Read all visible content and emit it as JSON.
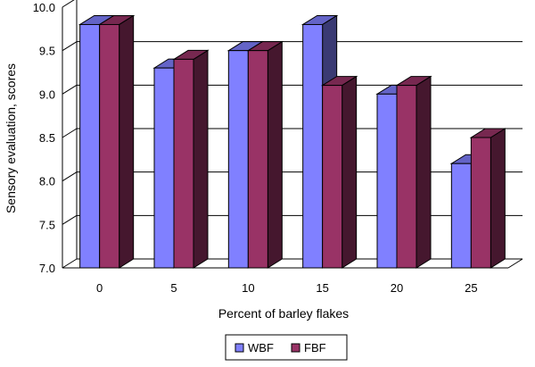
{
  "chart_data": {
    "type": "bar",
    "categories": [
      "0",
      "5",
      "10",
      "15",
      "20",
      "25"
    ],
    "series": [
      {
        "name": "WBF",
        "values": [
          9.8,
          9.3,
          9.5,
          9.8,
          9.0,
          8.2
        ],
        "color": "#8080ff"
      },
      {
        "name": "FBF",
        "values": [
          9.8,
          9.4,
          9.5,
          9.1,
          9.1,
          8.5
        ],
        "color": "#993366"
      }
    ],
    "title": "",
    "xlabel": "Percent of barley flakes",
    "ylabel": "Sensory evaluation, scores",
    "ylim": [
      7.0,
      10.0
    ],
    "yticks": [
      "7.0",
      "7.5",
      "8.0",
      "8.5",
      "9.0",
      "9.5",
      "10.0"
    ],
    "grid": true,
    "legend_position": "bottom",
    "style": "3d-clustered-bar"
  }
}
